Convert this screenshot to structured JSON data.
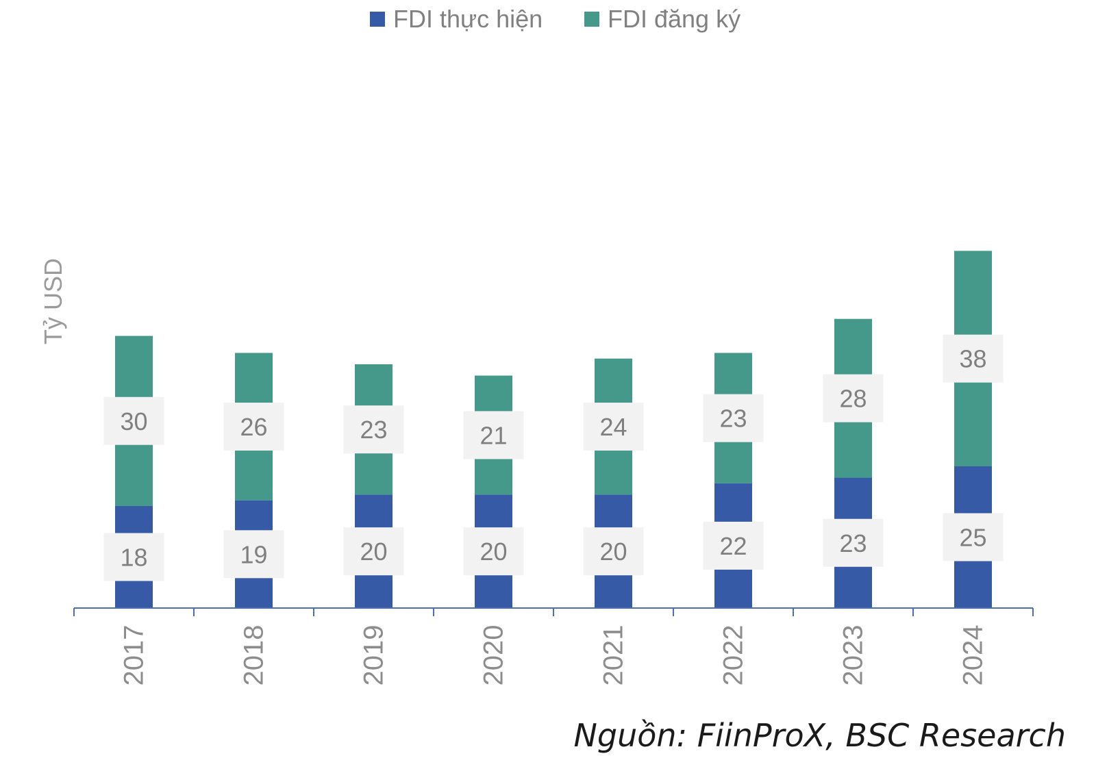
{
  "chart_data": {
    "type": "bar",
    "stacked": true,
    "categories": [
      "2017",
      "2018",
      "2019",
      "2020",
      "2021",
      "2022",
      "2023",
      "2024"
    ],
    "series": [
      {
        "name": "FDI thực hiện",
        "color": "#365AA6",
        "values": [
          18,
          19,
          20,
          20,
          20,
          22,
          23,
          25
        ]
      },
      {
        "name": "FDI đăng ký",
        "color": "#45998A",
        "values": [
          30,
          26,
          23,
          21,
          24,
          23,
          28,
          38
        ]
      }
    ],
    "ylabel": "Tỷ USD",
    "ylim": [
      0,
      100
    ],
    "grid": false,
    "legend": "top-center",
    "data_labels": true,
    "source": "Nguồn: FiinProX, BSC Research"
  }
}
